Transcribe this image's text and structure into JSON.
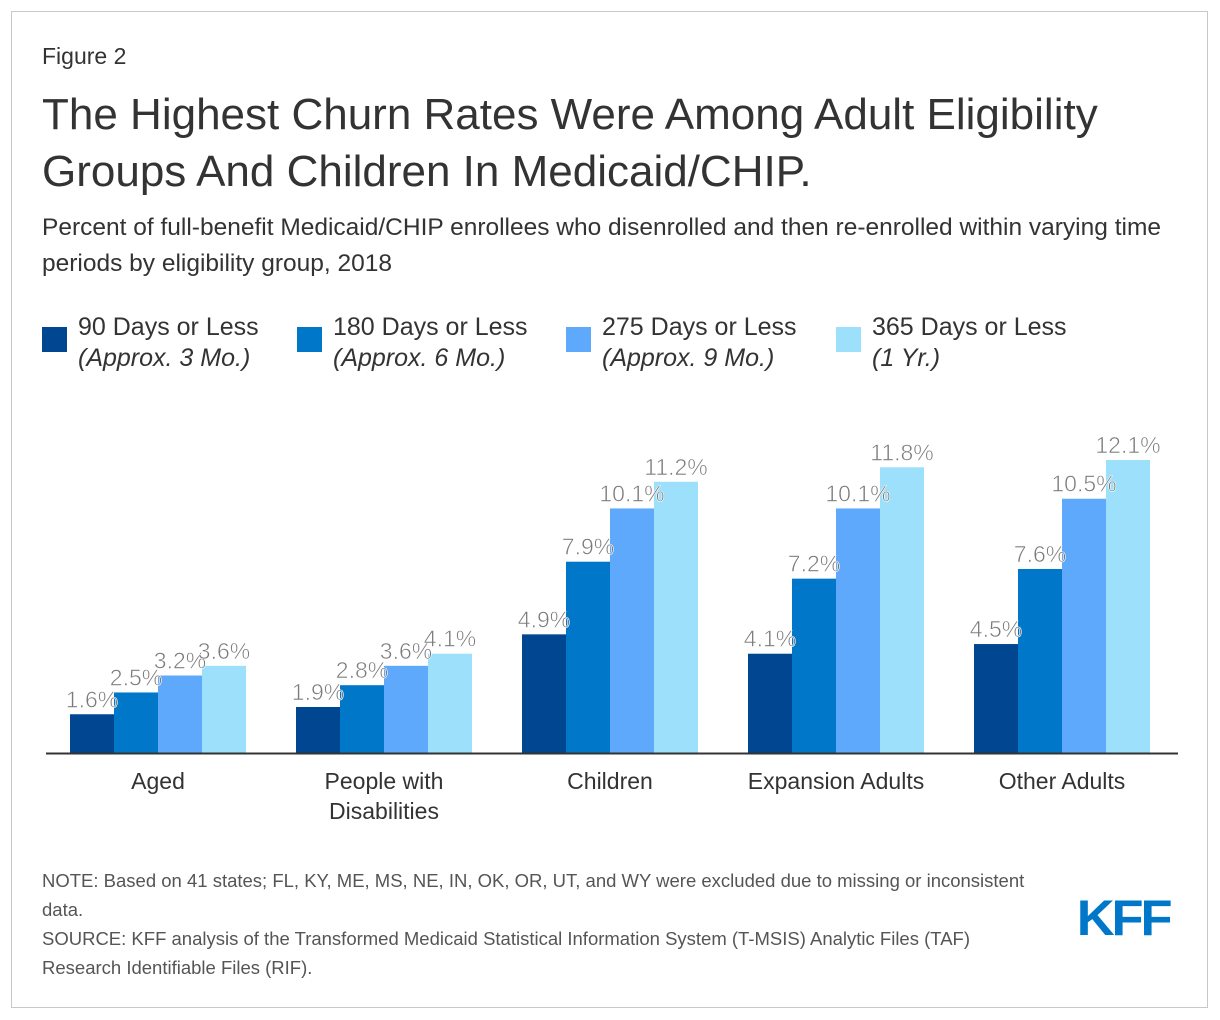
{
  "figure_label": "Figure 2",
  "title": "The Highest Churn Rates Were Among Adult Eligibility Groups And Children In Medicaid/CHIP.",
  "subtitle": "Percent of full-benefit Medicaid/CHIP enrollees who disenrolled and then re-enrolled within varying time periods by eligibility group, 2018",
  "note": "NOTE: Based on 41 states; FL, KY, ME, MS, NE, IN, OK, OR, UT, and WY were excluded due to missing or inconsistent data.",
  "source": "SOURCE: KFF analysis of the Transformed Medicaid Statistical Information System (T-MSIS) Analytic Files (TAF) Research Identifiable Files (RIF).",
  "logo": "KFF",
  "chart_data": {
    "type": "bar",
    "categories": [
      [
        "Aged"
      ],
      [
        "People with",
        "Disabilities"
      ],
      [
        "Children"
      ],
      [
        "Expansion Adults"
      ],
      [
        "Other Adults"
      ]
    ],
    "legend_position": "top",
    "grid": false,
    "ylim": [
      0,
      12.1
    ],
    "series": [
      {
        "name": "90 Days or Less",
        "sub": "(Approx. 3 Mo.)",
        "color": "#004691",
        "values": [
          1.6,
          1.9,
          4.9,
          4.1,
          4.5
        ],
        "labels": [
          "1.6%",
          "1.9%",
          "4.9%",
          "4.1%",
          "4.5%"
        ]
      },
      {
        "name": "180 Days or Less",
        "sub": "(Approx. 6 Mo.)",
        "color": "#0077c8",
        "values": [
          2.5,
          2.8,
          7.9,
          7.2,
          7.6
        ],
        "labels": [
          "2.5%",
          "2.8%",
          "7.9%",
          "7.2%",
          "7.6%"
        ]
      },
      {
        "name": "275 Days or Less",
        "sub": "(Approx. 9 Mo.)",
        "color": "#5ea9fb",
        "values": [
          3.2,
          3.6,
          10.1,
          10.1,
          10.5
        ],
        "labels": [
          "3.2%",
          "3.6%",
          "10.1%",
          "10.1%",
          "10.5%"
        ]
      },
      {
        "name": "365 Days or Less",
        "sub": "(1 Yr.)",
        "color": "#9de0fb",
        "values": [
          3.6,
          4.1,
          11.2,
          11.8,
          12.1
        ],
        "labels": [
          "3.6%",
          "4.1%",
          "11.2%",
          "11.8%",
          "12.1%"
        ]
      }
    ]
  }
}
